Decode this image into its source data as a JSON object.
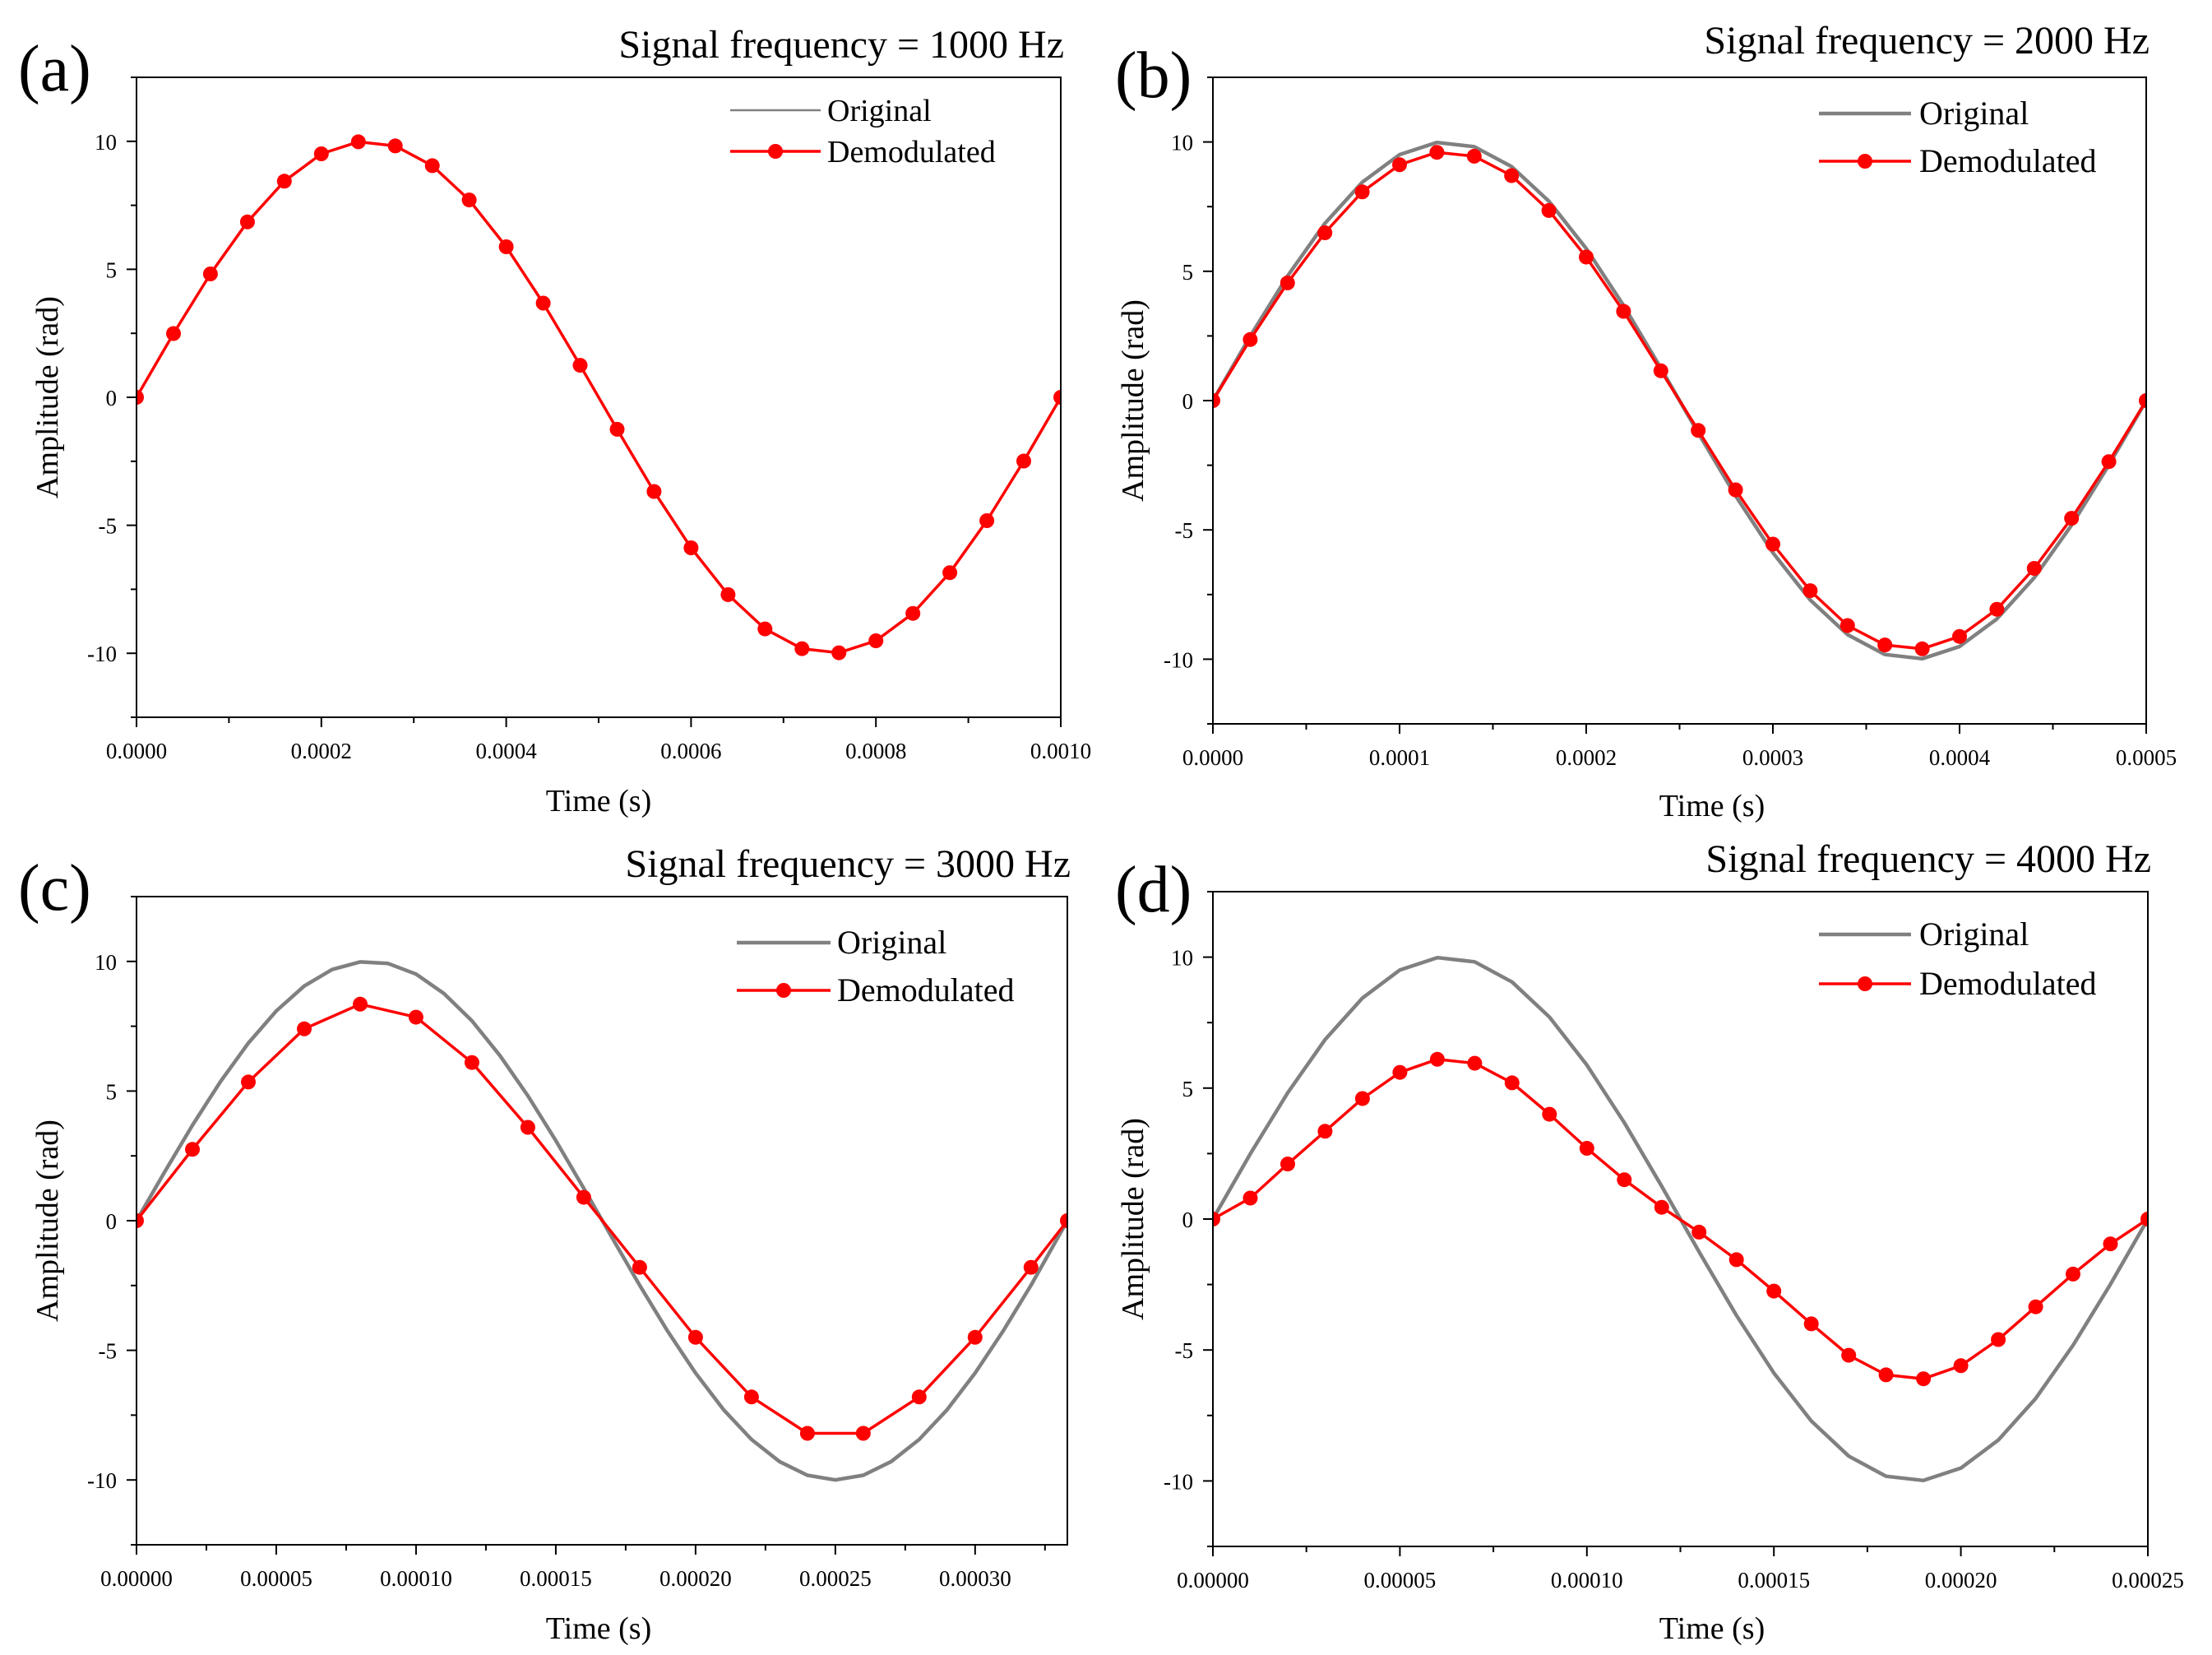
{
  "chart_data": [
    {
      "type": "line",
      "panel_label": "(a)",
      "title": "Signal frequency = 1000 Hz",
      "xlabel": "Time (s)",
      "ylabel": "Amplitude (rad)",
      "xlim": [
        0,
        0.001
      ],
      "ylim": [
        -12.5,
        12.5
      ],
      "xticks": [
        0,
        0.0002,
        0.0004,
        0.0006,
        0.0008,
        0.001
      ],
      "xtick_labels": [
        "0.0000",
        "0.0002",
        "0.0004",
        "0.0006",
        "0.0008",
        "0.0010"
      ],
      "yticks": [
        -10,
        -5,
        0,
        5,
        10
      ],
      "ytick_labels": [
        "-10",
        "-5",
        "0",
        "5",
        "10"
      ],
      "legend_position": "top-right",
      "series": [
        {
          "name": "Original",
          "color": "#808080",
          "marker": "none",
          "x": [
            0,
            4e-05,
            8e-05,
            0.00012,
            0.00016,
            0.0002,
            0.00024,
            0.00028,
            0.00032,
            0.00036,
            0.0004,
            0.00044,
            0.00048,
            0.00052,
            0.00056,
            0.0006,
            0.00064,
            0.00068,
            0.00072,
            0.00076,
            0.0008,
            0.00084,
            0.00088,
            0.00092,
            0.00096,
            0.001
          ],
          "values": [
            0,
            2.49,
            4.82,
            6.85,
            8.44,
            9.51,
            9.98,
            9.82,
            9.05,
            7.71,
            5.88,
            3.68,
            1.25,
            -1.25,
            -3.68,
            -5.88,
            -7.71,
            -9.05,
            -9.82,
            -9.98,
            -9.51,
            -8.44,
            -6.85,
            -4.82,
            -2.49,
            0
          ]
        },
        {
          "name": "Demodulated",
          "color": "#ff0000",
          "marker": "circle",
          "x": [
            0,
            4e-05,
            8e-05,
            0.00012,
            0.00016,
            0.0002,
            0.00024,
            0.00028,
            0.00032,
            0.00036,
            0.0004,
            0.00044,
            0.00048,
            0.00052,
            0.00056,
            0.0006,
            0.00064,
            0.00068,
            0.00072,
            0.00076,
            0.0008,
            0.00084,
            0.00088,
            0.00092,
            0.00096,
            0.001
          ],
          "values": [
            0,
            2.49,
            4.82,
            6.85,
            8.44,
            9.51,
            9.98,
            9.82,
            9.05,
            7.71,
            5.88,
            3.68,
            1.25,
            -1.25,
            -3.68,
            -5.88,
            -7.71,
            -9.05,
            -9.82,
            -9.98,
            -9.51,
            -8.44,
            -6.85,
            -4.82,
            -2.49,
            0
          ]
        }
      ]
    },
    {
      "type": "line",
      "panel_label": "(b)",
      "title": "Signal frequency = 2000 Hz",
      "xlabel": "Time (s)",
      "ylabel": "Amplitude (rad)",
      "xlim": [
        0,
        0.0005
      ],
      "ylim": [
        -12.5,
        12.5
      ],
      "xticks": [
        0,
        0.0001,
        0.0002,
        0.0003,
        0.0004,
        0.0005
      ],
      "xtick_labels": [
        "0.0000",
        "0.0001",
        "0.0002",
        "0.0003",
        "0.0004",
        "0.0005"
      ],
      "yticks": [
        -10,
        -5,
        0,
        5,
        10
      ],
      "ytick_labels": [
        "-10",
        "-5",
        "0",
        "5",
        "10"
      ],
      "legend_position": "top-right",
      "series": [
        {
          "name": "Original",
          "color": "#808080",
          "marker": "none",
          "x": [
            0,
            2e-05,
            4e-05,
            6e-05,
            8e-05,
            0.0001,
            0.00012,
            0.00014,
            0.00016,
            0.00018,
            0.0002,
            0.00022,
            0.00024,
            0.00026,
            0.00028,
            0.0003,
            0.00032,
            0.00034,
            0.00036,
            0.00038,
            0.0004,
            0.00042,
            0.00044,
            0.00046,
            0.00048,
            0.0005
          ],
          "values": [
            0,
            2.49,
            4.82,
            6.85,
            8.44,
            9.51,
            9.98,
            9.82,
            9.05,
            7.71,
            5.88,
            3.68,
            1.25,
            -1.25,
            -3.68,
            -5.88,
            -7.71,
            -9.05,
            -9.82,
            -9.98,
            -9.51,
            -8.44,
            -6.85,
            -4.82,
            -2.49,
            0
          ]
        },
        {
          "name": "Demodulated",
          "color": "#ff0000",
          "marker": "circle",
          "x": [
            0,
            2e-05,
            4e-05,
            6e-05,
            8e-05,
            0.0001,
            0.00012,
            0.00014,
            0.00016,
            0.00018,
            0.0002,
            0.00022,
            0.00024,
            0.00026,
            0.00028,
            0.0003,
            0.00032,
            0.00034,
            0.00036,
            0.00038,
            0.0004,
            0.00042,
            0.00044,
            0.00046,
            0.00048,
            0.0005
          ],
          "values": [
            0,
            2.36,
            4.55,
            6.49,
            8.07,
            9.12,
            9.6,
            9.45,
            8.7,
            7.35,
            5.55,
            3.45,
            1.15,
            -1.15,
            -3.45,
            -5.55,
            -7.35,
            -8.7,
            -9.45,
            -9.6,
            -9.12,
            -8.07,
            -6.49,
            -4.55,
            -2.36,
            0
          ]
        }
      ]
    },
    {
      "type": "line",
      "panel_label": "(c)",
      "title": "Signal frequency = 3000 Hz",
      "xlabel": "Time (s)",
      "ylabel": "Amplitude (rad)",
      "xlim": [
        0,
        0.000333
      ],
      "ylim": [
        -12.5,
        12.5
      ],
      "xticks": [
        0,
        5e-05,
        0.0001,
        0.00015,
        0.0002,
        0.00025,
        0.0003
      ],
      "xtick_labels": [
        "0.00000",
        "0.00005",
        "0.00010",
        "0.00015",
        "0.00020",
        "0.00025",
        "0.00030"
      ],
      "yticks": [
        -10,
        -5,
        0,
        5,
        10
      ],
      "ytick_labels": [
        "-10",
        "-5",
        "0",
        "5",
        "10"
      ],
      "legend_position": "top-right",
      "series": [
        {
          "name": "Original",
          "color": "#808080",
          "marker": "none",
          "x": [
            0,
            1e-05,
            2e-05,
            3e-05,
            4e-05,
            5e-05,
            6e-05,
            7e-05,
            8e-05,
            9e-05,
            0.0001,
            0.00011,
            0.00012,
            0.00013,
            0.00014,
            0.00015,
            0.00016,
            0.00017,
            0.00018,
            0.00019,
            0.0002,
            0.00021,
            0.00022,
            0.00023,
            0.00024,
            0.00025,
            0.00026,
            0.00027,
            0.00028,
            0.00029,
            0.0003,
            0.00031,
            0.00032,
            0.000333
          ],
          "values": [
            0,
            1.87,
            3.68,
            5.36,
            6.85,
            8.09,
            9.05,
            9.69,
            9.98,
            9.92,
            9.51,
            8.76,
            7.71,
            6.37,
            4.82,
            3.09,
            1.25,
            -0.63,
            -2.49,
            -4.26,
            -5.88,
            -7.29,
            -8.44,
            -9.29,
            -9.82,
            -10.0,
            -9.82,
            -9.29,
            -8.44,
            -7.29,
            -5.88,
            -4.26,
            -2.49,
            0
          ]
        },
        {
          "name": "Demodulated",
          "color": "#ff0000",
          "marker": "circle",
          "x": [
            0,
            2e-05,
            4e-05,
            6e-05,
            8e-05,
            0.0001,
            0.00012,
            0.00014,
            0.00016,
            0.00018,
            0.0002,
            0.00022,
            0.00024,
            0.00026,
            0.00028,
            0.0003,
            0.00032,
            0.000333
          ],
          "values": [
            0,
            2.75,
            5.35,
            7.4,
            8.35,
            7.85,
            6.1,
            3.6,
            0.9,
            -1.8,
            -4.5,
            -6.8,
            -8.2,
            -8.2,
            -6.8,
            -4.5,
            -1.8,
            0
          ]
        }
      ]
    },
    {
      "type": "line",
      "panel_label": "(d)",
      "title": "Signal frequency = 4000 Hz",
      "xlabel": "Time (s)",
      "ylabel": "Amplitude (rad)",
      "xlim": [
        0,
        0.00025
      ],
      "ylim": [
        -12.5,
        12.5
      ],
      "xticks": [
        0,
        5e-05,
        0.0001,
        0.00015,
        0.0002,
        0.00025
      ],
      "xtick_labels": [
        "0.00000",
        "0.00005",
        "0.00010",
        "0.00015",
        "0.00020",
        "0.00025"
      ],
      "yticks": [
        -10,
        -5,
        0,
        5,
        10
      ],
      "ytick_labels": [
        "-10",
        "-5",
        "0",
        "5",
        "10"
      ],
      "legend_position": "top-right",
      "series": [
        {
          "name": "Original",
          "color": "#808080",
          "marker": "none",
          "x": [
            0,
            1e-05,
            2e-05,
            3e-05,
            4e-05,
            5e-05,
            6e-05,
            7e-05,
            8e-05,
            9e-05,
            0.0001,
            0.00011,
            0.00012,
            0.00013,
            0.00014,
            0.00015,
            0.00016,
            0.00017,
            0.00018,
            0.00019,
            0.0002,
            0.00021,
            0.00022,
            0.00023,
            0.00024,
            0.00025
          ],
          "values": [
            0,
            2.49,
            4.82,
            6.85,
            8.44,
            9.51,
            9.98,
            9.82,
            9.05,
            7.71,
            5.88,
            3.68,
            1.25,
            -1.25,
            -3.68,
            -5.88,
            -7.71,
            -9.05,
            -9.82,
            -9.98,
            -9.51,
            -8.44,
            -6.85,
            -4.82,
            -2.49,
            0
          ]
        },
        {
          "name": "Demodulated",
          "color": "#ff0000",
          "marker": "circle",
          "x": [
            0,
            1e-05,
            2e-05,
            3e-05,
            4e-05,
            5e-05,
            6e-05,
            7e-05,
            8e-05,
            9e-05,
            0.0001,
            0.00011,
            0.00012,
            0.00013,
            0.00014,
            0.00015,
            0.00016,
            0.00017,
            0.00018,
            0.00019,
            0.0002,
            0.00021,
            0.00022,
            0.00023,
            0.00024,
            0.00025
          ],
          "values": [
            0,
            0.8,
            2.1,
            3.35,
            4.6,
            5.6,
            6.1,
            5.95,
            5.2,
            4.0,
            2.7,
            1.5,
            0.45,
            -0.5,
            -1.55,
            -2.75,
            -4.0,
            -5.2,
            -5.95,
            -6.1,
            -5.6,
            -4.6,
            -3.35,
            -2.1,
            -0.95,
            0
          ]
        }
      ]
    }
  ]
}
